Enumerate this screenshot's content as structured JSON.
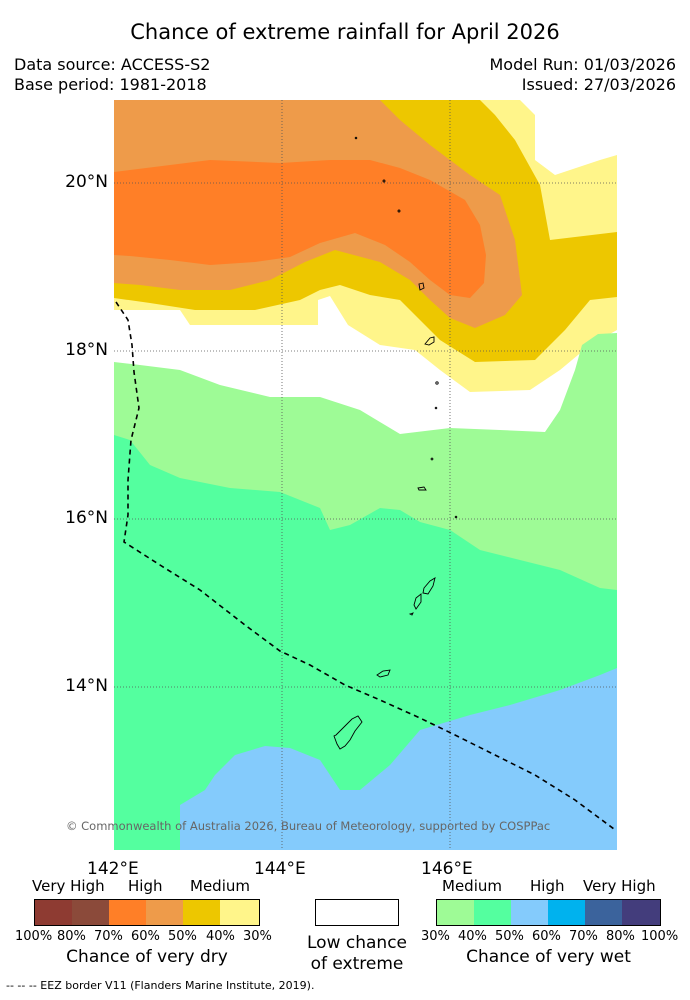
{
  "title": "Chance of extreme rainfall for April 2026",
  "meta": {
    "data_source": "Data source: ACCESS-S2",
    "base_period": "Base period: 1981-2018",
    "model_run": "Model Run: 01/03/2026",
    "issued": "Issued: 27/03/2026"
  },
  "map": {
    "lat_labels": [
      "20°N",
      "18°N",
      "16°N",
      "14°N"
    ],
    "lon_labels": [
      "142°E",
      "144°E",
      "146°E"
    ],
    "copyright": "© Commonwealth of Australia 2026, Bureau of Meteorology, supported by COSPPac",
    "colors": {
      "very_high_dry": "#8e3b32",
      "high_dry_1": "#8b4a3a",
      "high_dry": "#ff7f27",
      "medium_high_dry": "#ee9b4a",
      "medium_dry": "#edc700",
      "low_dry": "#fff58a",
      "medium_wet": "#9efb96",
      "medium_high_wet": "#54ff9f",
      "high_wet": "#84cbfc",
      "high_wet_2": "#00b2ee",
      "very_high_wet": "#3b639c",
      "very_high_wet_2": "#433d7c"
    }
  },
  "dry_legend": {
    "categories": [
      "Very High",
      "High",
      "Medium"
    ],
    "swatches": [
      "#8e3b32",
      "#8b4a3a",
      "#ff7f27",
      "#ee9b4a",
      "#edc700",
      "#fff58a"
    ],
    "ticks": [
      "100%",
      "80%",
      "70%",
      "60%",
      "50%",
      "40%",
      "30%"
    ],
    "caption": "Chance of very dry"
  },
  "low_legend": {
    "caption_line1": "Low chance",
    "caption_line2": "of extreme"
  },
  "wet_legend": {
    "categories": [
      "Medium",
      "High",
      "Very High"
    ],
    "swatches": [
      "#9efb96",
      "#54ff9f",
      "#84cbfc",
      "#00b2ee",
      "#3b639c",
      "#433d7c"
    ],
    "ticks": [
      "30%",
      "40%",
      "50%",
      "60%",
      "70%",
      "80%",
      "100%"
    ],
    "caption": "Chance of very wet"
  },
  "footer": "--  --  -- EEZ border V11 (Flanders Marine Institute, 2019)."
}
